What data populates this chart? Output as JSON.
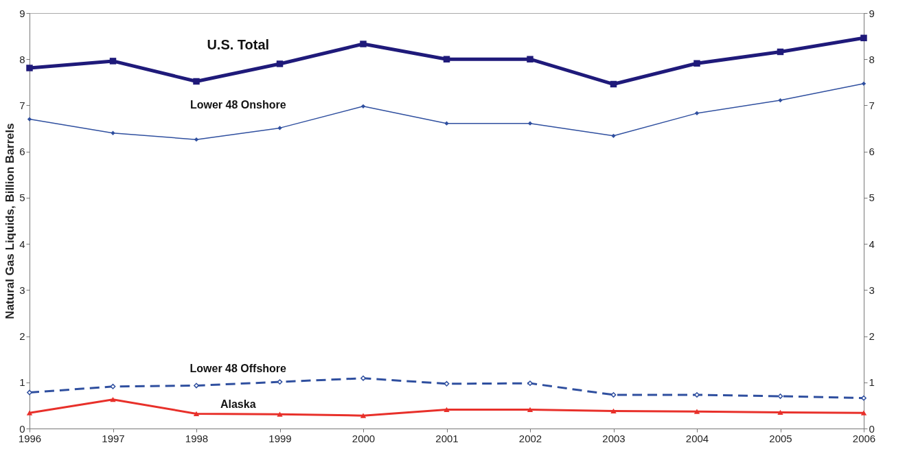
{
  "chart_data": {
    "type": "line",
    "ylabel": "Natural Gas Liquids, Billion Barrels",
    "x": [
      1996,
      1997,
      1998,
      1999,
      2000,
      2001,
      2002,
      2003,
      2004,
      2005,
      2006
    ],
    "xlim": [
      1996,
      2006
    ],
    "xticks": [
      1996,
      1997,
      1998,
      1999,
      2000,
      2001,
      2002,
      2003,
      2004,
      2005,
      2006
    ],
    "ylim": [
      0,
      9
    ],
    "yticks": [
      0,
      1,
      2,
      3,
      4,
      5,
      6,
      7,
      8,
      9
    ],
    "y2lim": [
      0,
      9
    ],
    "y2ticks": [
      0,
      1,
      2,
      3,
      4,
      5,
      6,
      7,
      8,
      9
    ],
    "series": [
      {
        "name": "U.S. Total",
        "color": "#1f1a7a",
        "marker": "square",
        "line_style": "solid",
        "values": [
          7.81,
          7.96,
          7.52,
          7.9,
          8.33,
          8.0,
          8.0,
          7.46,
          7.91,
          8.16,
          8.46
        ]
      },
      {
        "name": "Lower 48 Onshore",
        "color": "#2f4f9f",
        "marker": "diamond",
        "line_style": "solid",
        "values": [
          6.7,
          6.4,
          6.26,
          6.51,
          6.98,
          6.61,
          6.61,
          6.34,
          6.83,
          7.11,
          7.47
        ]
      },
      {
        "name": "Lower 48 Offshore",
        "color": "#2f4f9f",
        "marker": "diamond",
        "line_style": "dashed",
        "values": [
          0.78,
          0.91,
          0.93,
          1.01,
          1.09,
          0.97,
          0.98,
          0.73,
          0.73,
          0.7,
          0.66
        ]
      },
      {
        "name": "Alaska",
        "color": "#e8302a",
        "marker": "triangle",
        "line_style": "solid",
        "values": [
          0.34,
          0.63,
          0.32,
          0.31,
          0.28,
          0.41,
          0.41,
          0.38,
          0.37,
          0.35,
          0.34
        ]
      }
    ]
  }
}
